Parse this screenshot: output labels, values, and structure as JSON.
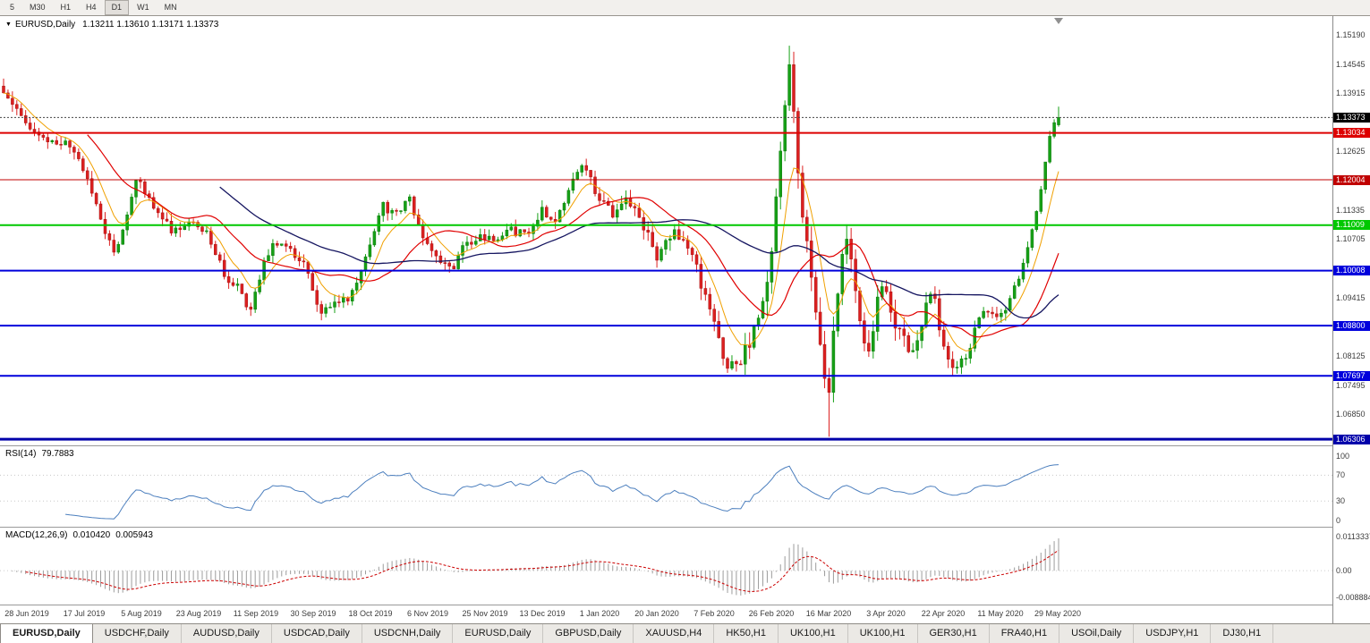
{
  "toolbar": {
    "timeframes": [
      {
        "label": "5",
        "active": false
      },
      {
        "label": "M30",
        "active": false
      },
      {
        "label": "H1",
        "active": false
      },
      {
        "label": "H4",
        "active": false
      },
      {
        "label": "D1",
        "active": true
      },
      {
        "label": "W1",
        "active": false
      },
      {
        "label": "MN",
        "active": false
      }
    ]
  },
  "chart": {
    "collapse_icon": "▼",
    "title": "EURUSD,Daily",
    "ohlc": "1.13211 1.13610 1.13171 1.13373",
    "price_axis_labels": [
      {
        "text": "1.15190",
        "price": 1.1519
      },
      {
        "text": "1.14545",
        "price": 1.14545
      },
      {
        "text": "1.13915",
        "price": 1.13915
      },
      {
        "text": "1.12625",
        "price": 1.12625
      },
      {
        "text": "1.11335",
        "price": 1.11335
      },
      {
        "text": "1.10705",
        "price": 1.10705
      },
      {
        "text": "1.09415",
        "price": 1.09415
      },
      {
        "text": "1.08125",
        "price": 1.08125
      },
      {
        "text": "1.07495",
        "price": 1.07495
      },
      {
        "text": "1.06850",
        "price": 1.0685
      }
    ],
    "hlines": [
      {
        "label": "1.13034",
        "price": 1.13034,
        "color": "#dd0000",
        "width": 2
      },
      {
        "label": "1.12004",
        "price": 1.12004,
        "color": "#c00000",
        "width": 1
      },
      {
        "label": "1.11009",
        "price": 1.11009,
        "color": "#00c800",
        "width": 2
      },
      {
        "label": "1.10008",
        "price": 1.10008,
        "color": "#0000dc",
        "width": 2
      },
      {
        "label": "1.08800",
        "price": 1.088,
        "color": "#0000dc",
        "width": 2
      },
      {
        "label": "1.07697",
        "price": 1.07697,
        "color": "#0000dc",
        "width": 2
      },
      {
        "label": "1.06306",
        "price": 1.06306,
        "color": "#0000aa",
        "width": 3
      }
    ],
    "bid": {
      "label": "1.13373",
      "price": 1.13373,
      "color": "#000000"
    }
  },
  "rsi": {
    "name": "RSI(14)",
    "value": "79.7883",
    "line_color": "#4c7fbe",
    "scale": [
      {
        "text": "100",
        "value": 100
      },
      {
        "text": "70",
        "value": 70
      },
      {
        "text": "30",
        "value": 30
      },
      {
        "text": "0",
        "value": 0
      }
    ]
  },
  "macd": {
    "name": "MACD(12,26,9)",
    "value_main": "0.010420",
    "value_signal": "0.005943",
    "hist_color": "#9c9c9c",
    "signal_color": "#cc0000",
    "scale": [
      {
        "text": "0.0113337",
        "value": 0.0113337
      },
      {
        "text": "0.00",
        "value": 0
      },
      {
        "text": "-0.0088848",
        "value": -0.0088848
      }
    ]
  },
  "tabs": [
    {
      "label": "EURUSD,Daily",
      "active": true
    },
    {
      "label": "USDCHF,Daily",
      "active": false
    },
    {
      "label": "AUDUSD,Daily",
      "active": false
    },
    {
      "label": "USDCAD,Daily",
      "active": false
    },
    {
      "label": "USDCNH,Daily",
      "active": false
    },
    {
      "label": "EURUSD,Daily",
      "active": false
    },
    {
      "label": "GBPUSD,Daily",
      "active": false
    },
    {
      "label": "XAUUSD,H4",
      "active": false
    },
    {
      "label": "HK50,H1",
      "active": false
    },
    {
      "label": "UK100,H1",
      "active": false
    },
    {
      "label": "UK100,H1",
      "active": false
    },
    {
      "label": "GER30,H1",
      "active": false
    },
    {
      "label": "FRA40,H1",
      "active": false
    },
    {
      "label": "USOil,Daily",
      "active": false
    },
    {
      "label": "USDJPY,H1",
      "active": false
    },
    {
      "label": "DJ30,H1",
      "active": false
    }
  ],
  "chart_data": {
    "type": "candlestick",
    "symbol": "EURUSD",
    "period": "Daily",
    "current_ohlc": {
      "open": 1.13211,
      "high": 1.1361,
      "low": 1.13171,
      "close": 1.13373
    },
    "ylim": [
      1.0617,
      1.156
    ],
    "levels": [
      1.13034,
      1.12004,
      1.11009,
      1.10008,
      1.088,
      1.07697,
      1.06306
    ],
    "x_dates": [
      "28 Jun 2019",
      "17 Jul 2019",
      "5 Aug 2019",
      "23 Aug 2019",
      "11 Sep 2019",
      "30 Sep 2019",
      "18 Oct 2019",
      "6 Nov 2019",
      "25 Nov 2019",
      "13 Dec 2019",
      "1 Jan 2020",
      "20 Jan 2020",
      "7 Feb 2020",
      "26 Feb 2020",
      "16 Mar 2020",
      "3 Apr 2020",
      "22 Apr 2020",
      "11 May 2020",
      "29 May 2020"
    ],
    "price_path": [
      [
        0,
        1.139
      ],
      [
        0.012,
        1.1368
      ],
      [
        0.025,
        1.132
      ],
      [
        0.04,
        1.128
      ],
      [
        0.06,
        1.1285
      ],
      [
        0.075,
        1.123
      ],
      [
        0.09,
        1.113
      ],
      [
        0.104,
        1.104
      ],
      [
        0.112,
        1.1085
      ],
      [
        0.125,
        1.1205
      ],
      [
        0.14,
        1.115
      ],
      [
        0.16,
        1.109
      ],
      [
        0.18,
        1.1115
      ],
      [
        0.196,
        1.107
      ],
      [
        0.21,
        1.099
      ],
      [
        0.222,
        1.0963
      ],
      [
        0.232,
        1.0905
      ],
      [
        0.244,
        1.1
      ],
      [
        0.256,
        1.107
      ],
      [
        0.272,
        1.104
      ],
      [
        0.285,
        1.1015
      ],
      [
        0.3,
        1.09
      ],
      [
        0.312,
        1.0925
      ],
      [
        0.328,
        1.094
      ],
      [
        0.345,
        1.104
      ],
      [
        0.358,
        1.115
      ],
      [
        0.37,
        1.112
      ],
      [
        0.385,
        1.1155
      ],
      [
        0.4,
        1.1065
      ],
      [
        0.412,
        1.103
      ],
      [
        0.425,
        1.1
      ],
      [
        0.438,
        1.106
      ],
      [
        0.452,
        1.108
      ],
      [
        0.468,
        1.106
      ],
      [
        0.48,
        1.109
      ],
      [
        0.495,
        1.108
      ],
      [
        0.51,
        1.1135
      ],
      [
        0.522,
        1.111
      ],
      [
        0.535,
        1.1175
      ],
      [
        0.55,
        1.123
      ],
      [
        0.565,
        1.116
      ],
      [
        0.578,
        1.1125
      ],
      [
        0.592,
        1.116
      ],
      [
        0.606,
        1.1095
      ],
      [
        0.62,
        1.103
      ],
      [
        0.634,
        1.1085
      ],
      [
        0.648,
        1.106
      ],
      [
        0.66,
        1.098
      ],
      [
        0.672,
        1.089
      ],
      [
        0.685,
        1.08
      ],
      [
        0.695,
        1.079
      ],
      [
        0.706,
        1.0845
      ],
      [
        0.716,
        1.0885
      ],
      [
        0.726,
        1.101
      ],
      [
        0.733,
        1.117
      ],
      [
        0.74,
        1.133
      ],
      [
        0.7445,
        1.1455
      ],
      [
        0.749,
        1.136
      ],
      [
        0.754,
        1.1185
      ],
      [
        0.76,
        1.109
      ],
      [
        0.767,
        1.0955
      ],
      [
        0.7725,
        1.09
      ],
      [
        0.778,
        1.075
      ],
      [
        0.7805,
        1.068
      ],
      [
        0.784,
        1.0775
      ],
      [
        0.79,
        1.095
      ],
      [
        0.797,
        1.1075
      ],
      [
        0.803,
        1.1035
      ],
      [
        0.81,
        1.093
      ],
      [
        0.818,
        1.0805
      ],
      [
        0.826,
        1.09
      ],
      [
        0.8335,
        1.0975
      ],
      [
        0.84,
        1.0905
      ],
      [
        0.848,
        1.0865
      ],
      [
        0.856,
        1.084
      ],
      [
        0.864,
        1.0825
      ],
      [
        0.872,
        1.09
      ],
      [
        0.88,
        1.0975
      ],
      [
        0.888,
        1.087
      ],
      [
        0.897,
        1.079
      ],
      [
        0.906,
        1.08
      ],
      [
        0.914,
        1.0815
      ],
      [
        0.922,
        1.089
      ],
      [
        0.93,
        1.0925
      ],
      [
        0.94,
        1.089
      ],
      [
        0.95,
        1.0905
      ],
      [
        0.958,
        1.096
      ],
      [
        0.966,
        1.1015
      ],
      [
        0.974,
        1.109
      ],
      [
        0.981,
        1.115
      ],
      [
        0.988,
        1.1255
      ],
      [
        0.994,
        1.131
      ],
      [
        1,
        1.1337
      ]
    ],
    "volatility_path": [
      [
        0,
        1
      ],
      [
        0.55,
        1
      ],
      [
        0.63,
        1.4
      ],
      [
        0.72,
        1.9
      ],
      [
        0.8,
        2.3
      ],
      [
        0.86,
        1.5
      ],
      [
        0.93,
        1
      ],
      [
        1,
        0.9
      ]
    ],
    "force": [
      {
        "f": 0.7445,
        "h": 1.1495
      },
      {
        "f": 0.7805,
        "l": 1.0636
      },
      {
        "f": 1,
        "o": 1.13211,
        "h": 1.1361,
        "l": 1.13171,
        "c": 1.13373
      }
    ],
    "colors": {
      "up": "#16a016",
      "down": "#dc2020",
      "up_stroke": "#0b7a0b",
      "down_stroke": "#a51212"
    },
    "ma": [
      {
        "period": 8,
        "type": "ema",
        "color": "#f0a000",
        "width": 1
      },
      {
        "period": 20,
        "type": "sma",
        "color": "#e00000",
        "width": 1.2
      },
      {
        "period": 50,
        "type": "sma",
        "color": "#151560",
        "width": 1.3
      }
    ],
    "rsi": {
      "period": 14,
      "current": 79.7883,
      "levels": [
        70,
        30
      ]
    },
    "macd": {
      "fast": 12,
      "slow": 26,
      "signal": 9,
      "current": 0.01042,
      "signal_current": 0.005943
    },
    "render": {
      "count": 240,
      "seed": 13,
      "noise": 0.001,
      "wick": 0.0017
    }
  }
}
